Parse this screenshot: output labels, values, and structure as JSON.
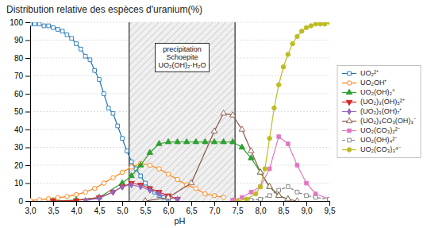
{
  "chart_data": {
    "type": "line",
    "title": "Distribution relative des espèces d'uranium(%)",
    "x_label": "pH",
    "xlim": [
      3.0,
      9.5
    ],
    "ylim": [
      0,
      100
    ],
    "xticks": [
      {
        "value": 3.0,
        "label": "3,0"
      },
      {
        "value": 3.5,
        "label": "3,5"
      },
      {
        "value": 4.0,
        "label": "4,0"
      },
      {
        "value": 4.5,
        "label": "4,5"
      },
      {
        "value": 5.0,
        "label": "5,0"
      },
      {
        "value": 5.5,
        "label": "5,5"
      },
      {
        "value": 6.0,
        "label": "6,0"
      },
      {
        "value": 6.5,
        "label": "6,5"
      },
      {
        "value": 7.0,
        "label": "7,0"
      },
      {
        "value": 7.5,
        "label": "7,5"
      },
      {
        "value": 8.0,
        "label": "8,0"
      },
      {
        "value": 8.5,
        "label": "8,5"
      },
      {
        "value": 9.0,
        "label": "9,0"
      },
      {
        "value": 9.5,
        "label": "9,5"
      }
    ],
    "yticks": [
      0,
      10,
      20,
      30,
      40,
      50,
      60,
      70,
      80,
      90,
      100
    ],
    "grid": "y",
    "legend": "right",
    "annotations": [
      {
        "x0": 5.15,
        "x1": 7.45,
        "y": 80,
        "lines": [
          "precipitation",
          "Schoepite",
          "UO₂(OH)₂·H₂O"
        ]
      }
    ],
    "series": [
      {
        "name": "UO₂²⁺",
        "marker": "square-open",
        "line_style": "solid",
        "x": [
          3.0,
          3.1,
          3.2,
          3.3,
          3.4,
          3.5,
          3.6,
          3.7,
          3.8,
          3.9,
          4.0,
          4.1,
          4.2,
          4.3,
          4.4,
          4.5,
          4.6,
          4.7,
          4.8,
          4.9,
          5.0,
          5.1,
          5.2,
          5.3,
          5.4,
          5.5,
          5.6,
          5.7,
          5.8,
          5.9,
          6.0
        ],
        "values": [
          99,
          99,
          99,
          98,
          98,
          97,
          96,
          95,
          93,
          91,
          88,
          85,
          81,
          79,
          73,
          68,
          60,
          52,
          49,
          42,
          35,
          28,
          22,
          18,
          14,
          10,
          7,
          5,
          3,
          2,
          1
        ]
      },
      {
        "name": "UO₂OH⁺",
        "marker": "circle-open",
        "line_style": "solid",
        "x": [
          3.0,
          3.2,
          3.4,
          3.6,
          3.8,
          4.0,
          4.2,
          4.4,
          4.6,
          4.8,
          5.0,
          5.2,
          5.4,
          5.6,
          5.8,
          6.0,
          6.2,
          6.4,
          6.6,
          6.8,
          7.0,
          7.2
        ],
        "values": [
          0.3,
          0.7,
          1.2,
          1.8,
          2.5,
          3.5,
          5,
          7,
          10,
          13,
          16,
          19,
          21,
          20,
          18,
          15,
          12,
          9,
          7,
          4,
          3,
          2
        ]
      },
      {
        "name": "UO₂(OH)₂°",
        "marker": "triangle-up",
        "line_style": "solid",
        "x": [
          3.5,
          4.0,
          4.5,
          5.0,
          5.2,
          5.4,
          5.6,
          5.8,
          6.0,
          6.2,
          6.4,
          6.6,
          6.8,
          7.0,
          7.2,
          7.4,
          7.6,
          7.8,
          8.0,
          8.2,
          8.4,
          8.6
        ],
        "values": [
          0,
          0.5,
          2,
          10,
          14,
          20,
          27,
          32,
          33,
          33,
          33,
          33,
          33,
          33,
          33,
          33,
          30,
          24,
          16,
          8,
          3,
          1
        ]
      },
      {
        "name": "(UO₂)₃(OH)₅²⁺",
        "marker": "triangle-down",
        "line_style": "solid",
        "x": [
          3.5,
          4.0,
          4.5,
          4.8,
          5.0,
          5.2,
          5.4,
          5.6,
          5.8,
          6.0,
          6.2
        ],
        "values": [
          0,
          0.3,
          2,
          5,
          8,
          10,
          9,
          7,
          5,
          3,
          1
        ]
      },
      {
        "name": "(UO₂)₃(OH)₇⁺",
        "marker": "diamond",
        "line_style": "solid",
        "x": [
          4.2,
          4.5,
          4.8,
          5.0,
          5.2,
          5.4,
          5.6,
          5.8,
          6.0,
          6.2
        ],
        "values": [
          0.3,
          1.5,
          5,
          8,
          9,
          8,
          6,
          4,
          2,
          1
        ]
      },
      {
        "name": "(UO₂)₃CO₃(OH)₃⁻",
        "marker": "triangle-up-open",
        "line_style": "solid",
        "x": [
          5.5,
          6.0,
          6.5,
          7.0,
          7.2,
          7.4,
          7.6,
          7.8,
          8.0,
          8.2,
          8.4,
          8.6,
          8.8
        ],
        "values": [
          0,
          2,
          10,
          39,
          49,
          48,
          40,
          28,
          16,
          8,
          3,
          1,
          0
        ]
      },
      {
        "name": "UO₂(CO₃)₂²⁻",
        "marker": "square",
        "line_style": "solid",
        "x": [
          7.4,
          7.6,
          7.8,
          8.0,
          8.2,
          8.4,
          8.6,
          8.8,
          9.0,
          9.2,
          9.5
        ],
        "values": [
          0.5,
          2,
          5,
          8,
          18,
          36,
          32,
          20,
          10,
          4,
          1
        ]
      },
      {
        "name": "UO₂(OH)₄²⁻",
        "marker": "square-open",
        "line_style": "dashed",
        "x": [
          7.8,
          8.0,
          8.2,
          8.4,
          8.6,
          8.8,
          9.0,
          9.2,
          9.5
        ],
        "values": [
          0.5,
          1,
          3,
          6,
          8,
          5,
          3,
          2,
          1
        ]
      },
      {
        "name": "UO₂(CO₃)₃⁴⁻",
        "marker": "circle",
        "line_style": "solid",
        "x": [
          7.5,
          7.7,
          7.9,
          8.0,
          8.1,
          8.2,
          8.3,
          8.4,
          8.5,
          8.6,
          8.7,
          8.8,
          8.9,
          9.0,
          9.1,
          9.2,
          9.3,
          9.4,
          9.5
        ],
        "values": [
          0,
          1,
          4,
          8,
          18,
          35,
          52,
          65,
          75,
          82,
          88,
          92,
          95,
          97,
          98,
          99,
          99,
          99,
          100
        ]
      }
    ]
  }
}
